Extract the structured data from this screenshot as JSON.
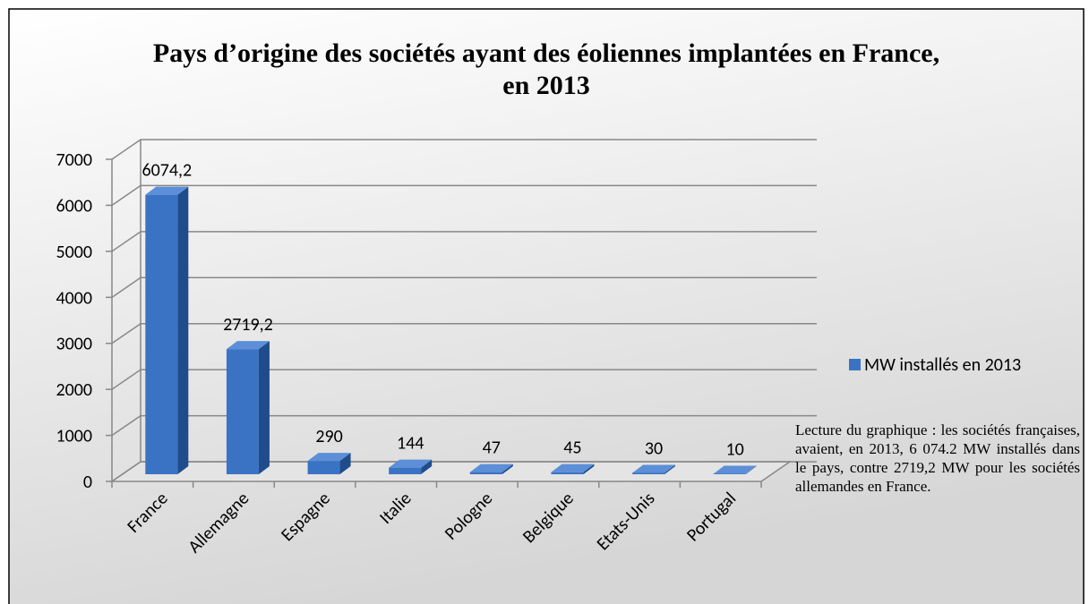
{
  "chart_data": {
    "type": "bar3d",
    "title": "Pays d’origine des sociétés ayant des éoliennes implantées en France, en 2013",
    "categories": [
      "France",
      "Allemagne",
      "Espagne",
      "Italie",
      "Pologne",
      "Belgique",
      "Etats-Unis",
      "Portugal"
    ],
    "series": [
      {
        "name": "MW installés en 2013",
        "color": "#3b73c4",
        "values": [
          6074.2,
          2719.2,
          290,
          144,
          47,
          45,
          30,
          10
        ],
        "value_labels": [
          "6074,2",
          "2719,2",
          "290",
          "144",
          "47",
          "45",
          "30",
          "10"
        ]
      }
    ],
    "ylim": [
      0,
      7000
    ],
    "yticks": [
      0,
      1000,
      2000,
      3000,
      4000,
      5000,
      6000,
      7000
    ],
    "grid": true,
    "legend": "right",
    "annotation": "Lecture du graphique : les sociétés françaises, avaient, en 2013, 6 074.2 MW installés dans le pays, contre 2719,2 MW pour les sociétés allemandes en France."
  }
}
